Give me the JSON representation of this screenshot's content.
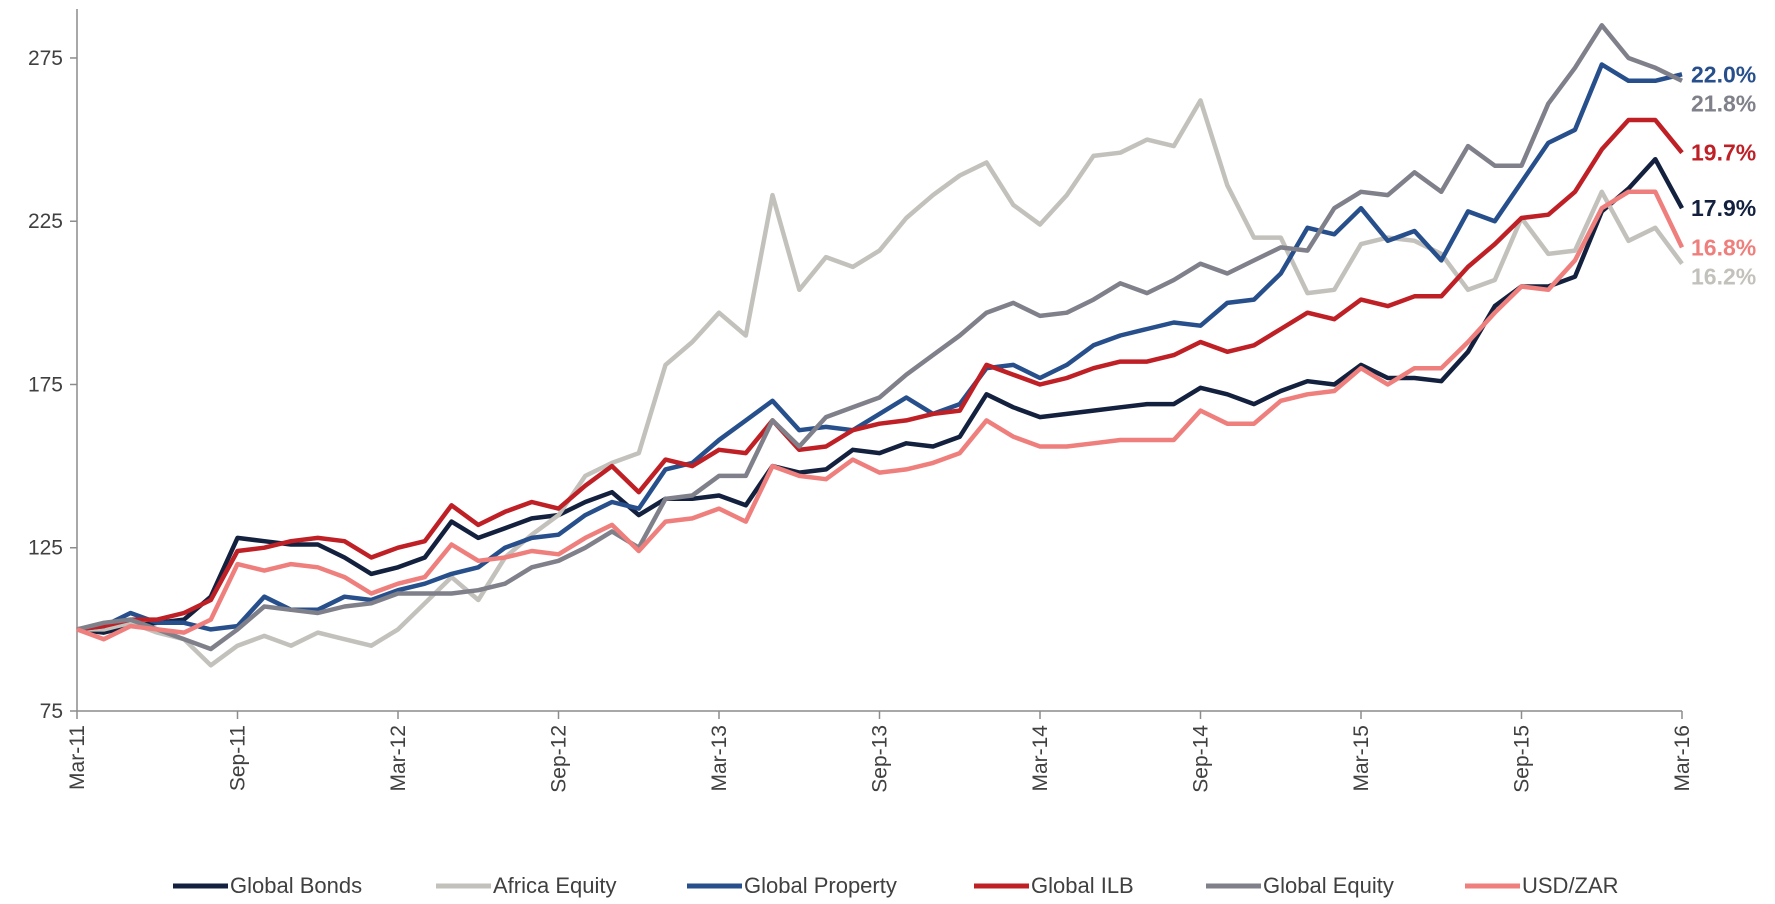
{
  "chart_data": {
    "type": "line",
    "categories": [
      "Mar-11",
      null,
      null,
      null,
      null,
      null,
      "Sep-11",
      null,
      null,
      null,
      null,
      null,
      "Mar-12",
      null,
      null,
      null,
      null,
      null,
      "Sep-12",
      null,
      null,
      null,
      null,
      null,
      "Mar-13",
      null,
      null,
      null,
      null,
      null,
      "Sep-13",
      null,
      null,
      null,
      null,
      null,
      "Mar-14",
      null,
      null,
      null,
      null,
      null,
      "Sep-14",
      null,
      null,
      null,
      null,
      null,
      "Mar-15",
      null,
      null,
      null,
      null,
      null,
      "Sep-15",
      null,
      null,
      null,
      null,
      null,
      "Mar-16"
    ],
    "ylim": [
      75,
      290
    ],
    "yticks": [
      75,
      125,
      175,
      225,
      275
    ],
    "grid": false,
    "series": [
      {
        "name": "Global Bonds",
        "color": "#13213f",
        "end_label": "17.9%",
        "values": [
          100,
          99,
          101,
          102,
          103,
          110,
          128,
          127,
          126,
          126,
          122,
          117,
          119,
          122,
          133,
          128,
          131,
          134,
          135,
          139,
          142,
          135,
          140,
          140,
          141,
          138,
          150,
          148,
          149,
          155,
          154,
          157,
          156,
          159,
          172,
          168,
          165,
          166,
          167,
          168,
          169,
          169,
          174,
          172,
          169,
          173,
          176,
          175,
          181,
          177,
          177,
          176,
          185,
          199,
          205,
          205,
          208,
          228,
          235,
          244,
          229
        ]
      },
      {
        "name": "Africa Equity",
        "color": "#c3c1bb",
        "end_label": "16.2%",
        "values": [
          100,
          100,
          102,
          99,
          97,
          89,
          95,
          98,
          95,
          99,
          97,
          95,
          100,
          108,
          116,
          109,
          122,
          129,
          135,
          147,
          151,
          154,
          181,
          188,
          197,
          190,
          233,
          204,
          214,
          211,
          216,
          226,
          233,
          239,
          243,
          230,
          224,
          233,
          245,
          246,
          250,
          248,
          262,
          236,
          220,
          220,
          203,
          204,
          218,
          220,
          219,
          215,
          204,
          207,
          226,
          215,
          216,
          234,
          219,
          223,
          212
        ]
      },
      {
        "name": "Global Property",
        "color": "#264f8c",
        "end_label": "22.0%",
        "values": [
          100,
          101,
          105,
          102,
          102,
          100,
          101,
          110,
          106,
          106,
          110,
          109,
          112,
          114,
          117,
          119,
          125,
          128,
          129,
          135,
          139,
          137,
          149,
          151,
          158,
          164,
          170,
          161,
          162,
          161,
          166,
          171,
          166,
          169,
          180,
          181,
          177,
          181,
          187,
          190,
          192,
          194,
          193,
          200,
          201,
          209,
          223,
          221,
          229,
          219,
          222,
          213,
          228,
          225,
          237,
          249,
          253,
          273,
          268,
          268,
          270
        ]
      },
      {
        "name": "Global ILB",
        "color": "#be2026",
        "end_label": "19.7%",
        "values": [
          100,
          101,
          103,
          103,
          105,
          109,
          124,
          125,
          127,
          128,
          127,
          122,
          125,
          127,
          138,
          132,
          136,
          139,
          137,
          144,
          150,
          142,
          152,
          150,
          155,
          154,
          164,
          155,
          156,
          161,
          163,
          164,
          166,
          167,
          181,
          178,
          175,
          177,
          180,
          182,
          182,
          184,
          188,
          185,
          187,
          192,
          197,
          195,
          201,
          199,
          202,
          202,
          211,
          218,
          226,
          227,
          234,
          247,
          256,
          256,
          246
        ]
      },
      {
        "name": "Global Equity",
        "color": "#7f808a",
        "end_label": "21.8%",
        "values": [
          100,
          102,
          103,
          100,
          97,
          94,
          100,
          107,
          106,
          105,
          107,
          108,
          111,
          111,
          111,
          112,
          114,
          119,
          121,
          125,
          130,
          125,
          140,
          141,
          147,
          147,
          164,
          156,
          165,
          168,
          171,
          178,
          184,
          190,
          197,
          200,
          196,
          197,
          201,
          206,
          203,
          207,
          212,
          209,
          213,
          217,
          216,
          229,
          234,
          233,
          240,
          234,
          248,
          242,
          242,
          261,
          272,
          285,
          275,
          272,
          268
        ]
      },
      {
        "name": "USD/ZAR",
        "color": "#ee7f7c",
        "end_label": "16.8%",
        "values": [
          100,
          97,
          101,
          100,
          99,
          103,
          120,
          118,
          120,
          119,
          116,
          111,
          114,
          116,
          126,
          121,
          122,
          124,
          123,
          128,
          132,
          124,
          133,
          134,
          137,
          133,
          150,
          147,
          146,
          152,
          148,
          149,
          151,
          154,
          164,
          159,
          156,
          156,
          157,
          158,
          158,
          158,
          167,
          163,
          163,
          170,
          172,
          173,
          180,
          175,
          180,
          180,
          188,
          197,
          205,
          204,
          213,
          229,
          234,
          234,
          217
        ]
      }
    ]
  }
}
